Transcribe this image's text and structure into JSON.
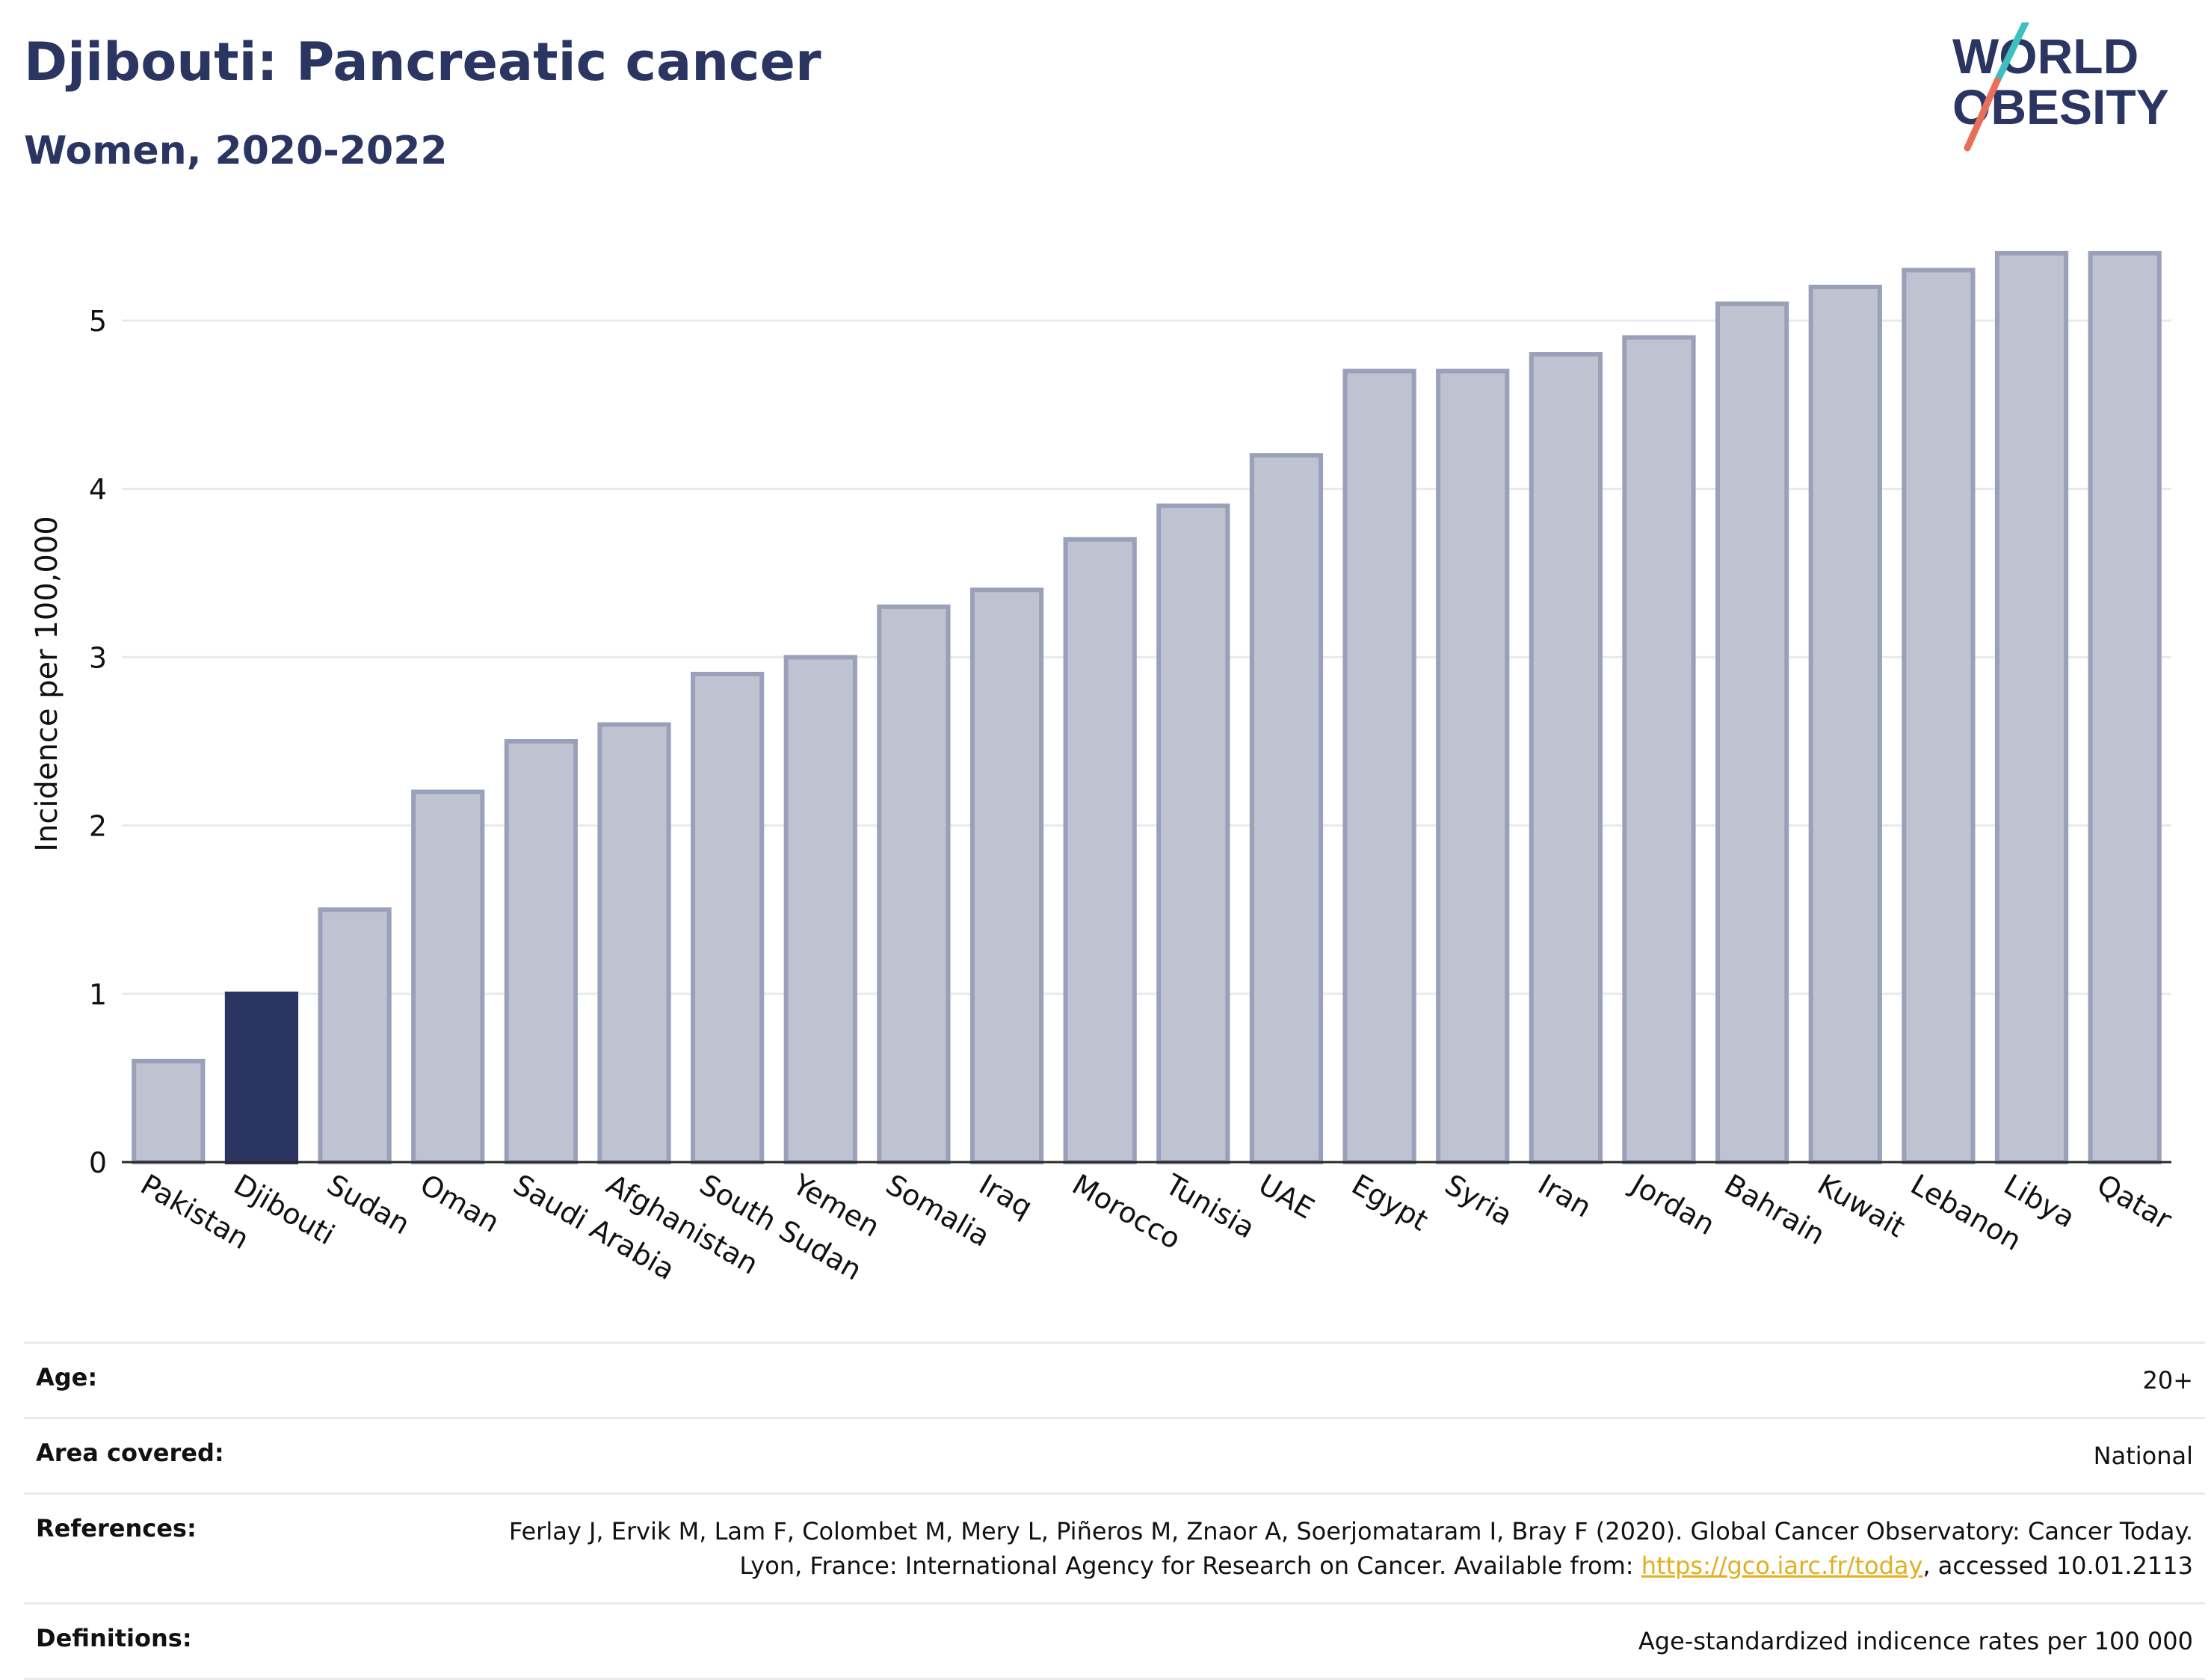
{
  "header": {
    "title": "Djibouti: Pancreatic cancer",
    "subtitle": "Women, 2020-2022"
  },
  "logo": {
    "line1": "WORLD",
    "line2": "OBESITY",
    "colors": {
      "text": "#2a3561",
      "slash_teal": "#3bbfbf",
      "slash_coral": "#e8705a"
    }
  },
  "chart_data": {
    "type": "bar",
    "categories": [
      "Pakistan",
      "Djibouti",
      "Sudan",
      "Oman",
      "Saudi Arabia",
      "Afghanistan",
      "South Sudan",
      "Yemen",
      "Somalia",
      "Iraq",
      "Morocco",
      "Tunisia",
      "UAE",
      "Egypt",
      "Syria",
      "Iran",
      "Jordan",
      "Bahrain",
      "Kuwait",
      "Lebanon",
      "Libya",
      "Qatar"
    ],
    "values": [
      0.6,
      1.0,
      1.5,
      2.2,
      2.5,
      2.6,
      2.9,
      3.0,
      3.3,
      3.4,
      3.7,
      3.9,
      4.2,
      4.7,
      4.7,
      4.8,
      4.9,
      5.1,
      5.2,
      5.3,
      5.4,
      5.4
    ],
    "highlight": "Djibouti",
    "ylabel": "Incidence per 100,000",
    "xlabel": "",
    "ylim": [
      0,
      5.5
    ],
    "yticks": [
      0,
      1,
      2,
      3,
      4,
      5
    ],
    "grid": true,
    "colors": {
      "bar": "#bfc2d0",
      "bar_border": "#9aa0ba",
      "highlight": "#2a3561"
    }
  },
  "info": {
    "rows": [
      {
        "label": "Age:",
        "value": "20+"
      },
      {
        "label": "Area covered:",
        "value": "National"
      },
      {
        "label": "References:",
        "value_pre": "Ferlay J, Ervik M, Lam F, Colombet M, Mery L, Piñeros M, Znaor A, Soerjomataram I, Bray F (2020). Global Cancer Observatory: Cancer Today. Lyon, France: International Agency for Research on Cancer. Available from: ",
        "link": "https://gco.iarc.fr/today",
        "value_post": ", accessed 10.01.2113"
      },
      {
        "label": "Definitions:",
        "value": "Age-standardized indicence rates per 100 000"
      }
    ]
  }
}
